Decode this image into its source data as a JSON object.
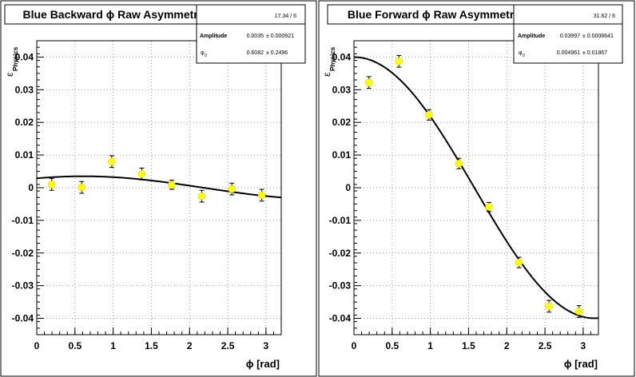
{
  "chart_data": [
    {
      "type": "scatter",
      "title": "Blue Backward ϕ Raw Asymmetry",
      "xlabel": "ϕ [rad]",
      "ylabel_main": "ε",
      "ylabel_sub": "Physics",
      "xlim": [
        0,
        3.2
      ],
      "ylim": [
        -0.045,
        0.045
      ],
      "x_ticks": [
        0,
        0.5,
        1,
        1.5,
        2,
        2.5,
        3
      ],
      "x_tick_labels": [
        "0",
        "0.5",
        "1",
        "1.5",
        "2",
        "2.5",
        "3"
      ],
      "y_ticks": [
        -0.04,
        -0.03,
        -0.02,
        -0.01,
        0,
        0.01,
        0.02,
        0.03,
        0.04
      ],
      "y_tick_labels": [
        "-0.04",
        "-0.03",
        "-0.02",
        "-0.01",
        "0",
        "0.01",
        "0.02",
        "0.03",
        "0.04"
      ],
      "grid": true,
      "stats": {
        "chi2ndf": "17.34 / 6",
        "rows": [
          {
            "label": "Amplitude",
            "value": "0.0035",
            "error": "± 0.000921"
          },
          {
            "label": "φ",
            "label_sub": "0",
            "value": "0.6082",
            "error": "± 0.2496"
          }
        ]
      },
      "fit": {
        "amplitude": 0.0035,
        "phi0": 0.6082
      },
      "series": [
        {
          "x": [
            0.196,
            0.589,
            0.982,
            1.374,
            1.767,
            2.16,
            2.553,
            2.945
          ],
          "y": [
            0.001,
            0.0001,
            0.008,
            0.0042,
            0.0009,
            -0.0026,
            -0.0004,
            -0.0023
          ],
          "err": [
            0.0018,
            0.0018,
            0.0018,
            0.0018,
            0.0014,
            0.0018,
            0.0018,
            0.0018
          ]
        }
      ]
    },
    {
      "type": "scatter",
      "title": "Blue Forward ϕ Raw Asymmetry",
      "xlabel": "ϕ [rad]",
      "ylabel_main": "ε",
      "ylabel_sub": "Physics",
      "xlim": [
        0,
        3.2
      ],
      "ylim": [
        -0.045,
        0.045
      ],
      "x_ticks": [
        0,
        0.5,
        1,
        1.5,
        2,
        2.5,
        3
      ],
      "x_tick_labels": [
        "0",
        "0.5",
        "1",
        "1.5",
        "2",
        "2.5",
        "3"
      ],
      "y_ticks": [
        -0.04,
        -0.03,
        -0.02,
        -0.01,
        0,
        0.01,
        0.02,
        0.03,
        0.04
      ],
      "y_tick_labels": [
        "-0.04",
        "-0.03",
        "-0.02",
        "-0.01",
        "0",
        "0.01",
        "0.02",
        "0.03",
        "0.04"
      ],
      "grid": true,
      "stats": {
        "chi2ndf": "31.62 / 6",
        "rows": [
          {
            "label": "Amplitude",
            "value": "0.03997",
            "error": "± 0.0008641"
          },
          {
            "label": "φ",
            "label_sub": "0",
            "value": "0.004961",
            "error": "± 0.01867"
          }
        ]
      },
      "fit": {
        "amplitude": 0.03997,
        "phi0": 0.004961
      },
      "series": [
        {
          "x": [
            0.196,
            0.589,
            0.982,
            1.374,
            1.767,
            2.16,
            2.553,
            2.945
          ],
          "y": [
            0.0322,
            0.0387,
            0.0223,
            0.0074,
            -0.0059,
            -0.0229,
            -0.0363,
            -0.0379
          ],
          "err": [
            0.0018,
            0.0018,
            0.0016,
            0.0016,
            0.0014,
            0.0016,
            0.0018,
            0.0018
          ]
        }
      ]
    }
  ],
  "colors": {
    "marker": "#ffff00",
    "marker_edge": "#c8c800",
    "fit_line": "#000000",
    "axis": "#000000",
    "grid": "#999999"
  }
}
